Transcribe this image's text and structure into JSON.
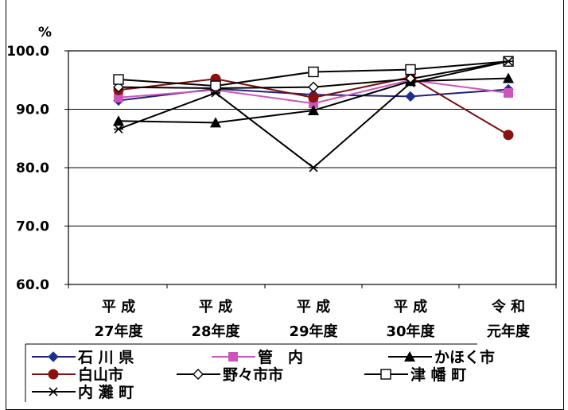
{
  "chart_data": {
    "type": "line",
    "ylabel": "%",
    "ylim": [
      60,
      100
    ],
    "yticks": [
      "100.0",
      "90.0",
      "80.0",
      "70.0",
      "60.0"
    ],
    "ytick_values": [
      100,
      90,
      80,
      70,
      60
    ],
    "categories": [
      {
        "line1": "平 成",
        "line2": "27年度"
      },
      {
        "line1": "平 成",
        "line2": "28年度"
      },
      {
        "line1": "平 成",
        "line2": "29年度"
      },
      {
        "line1": "平 成",
        "line2": "30年度"
      },
      {
        "line1": "令 和",
        "line2": "元年度"
      }
    ],
    "grid": true,
    "legend_position": "bottom",
    "series": [
      {
        "name": "石 川 県",
        "marker": "diamond-filled",
        "line_color": "#1f1f7a",
        "marker_color": "#1f2f8f",
        "values": [
          91.5,
          93.5,
          92.5,
          92.2,
          93.4
        ]
      },
      {
        "name": "管　内",
        "marker": "square-filled",
        "line_color": "#cc55bb",
        "marker_color": "#cc55bb",
        "values": [
          92.0,
          93.3,
          91.0,
          95.0,
          92.8
        ]
      },
      {
        "name": "かほく市",
        "marker": "triangle-filled",
        "line_color": "#000000",
        "marker_color": "#000000",
        "values": [
          88.0,
          87.7,
          89.8,
          94.8,
          95.3
        ]
      },
      {
        "name": "白山市",
        "marker": "circle-filled",
        "line_color": "#7a1010",
        "marker_color": "#8b1010",
        "values": [
          93.3,
          95.2,
          92.0,
          95.5,
          85.6
        ]
      },
      {
        "name": "野々市市",
        "marker": "diamond-open",
        "line_color": "#000000",
        "marker_color": "#000000",
        "values": [
          93.8,
          93.6,
          93.8,
          95.2,
          98.2
        ]
      },
      {
        "name": "津 幡 町",
        "marker": "square-open",
        "line_color": "#000000",
        "marker_color": "#000000",
        "values": [
          95.1,
          94.0,
          96.4,
          96.8,
          98.2
        ]
      },
      {
        "name": "内 灘 町",
        "marker": "asterisk",
        "line_color": "#000000",
        "marker_color": "#000000",
        "values": [
          86.6,
          92.8,
          80.0,
          94.5,
          98.2
        ]
      }
    ]
  }
}
